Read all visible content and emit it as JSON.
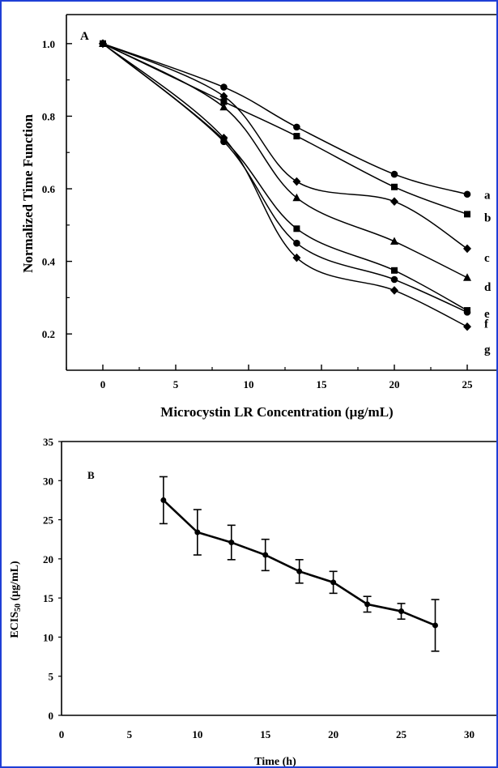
{
  "chart_data": [
    {
      "type": "scatter",
      "panel_label": "A",
      "xlabel": "Microcystin LR Concentration (μg/mL)",
      "ylabel": "Normalized Time Function",
      "xlim": [
        -2.5,
        27
      ],
      "ylim": [
        0.1,
        1.08
      ],
      "xticks": [
        0,
        5,
        10,
        15,
        20,
        25
      ],
      "yticks": [
        0.2,
        0.4,
        0.6,
        0.8,
        1.0
      ],
      "ytick_labels": [
        "0.2",
        "0.4",
        "0.6",
        "0.8",
        "1.0"
      ],
      "x": [
        0,
        8.3,
        13.3,
        20,
        25
      ],
      "series": [
        {
          "name": "a",
          "marker": "circle",
          "values": [
            1.0,
            0.88,
            0.77,
            0.64,
            0.585
          ]
        },
        {
          "name": "b",
          "marker": "square",
          "values": [
            1.0,
            0.84,
            0.745,
            0.605,
            0.53
          ]
        },
        {
          "name": "c",
          "marker": "diamond",
          "values": [
            1.0,
            0.855,
            0.62,
            0.565,
            0.435
          ]
        },
        {
          "name": "d",
          "marker": "triangle",
          "values": [
            1.0,
            0.825,
            0.575,
            0.455,
            0.355
          ]
        },
        {
          "name": "e",
          "marker": "square",
          "values": [
            1.0,
            0.735,
            0.49,
            0.375,
            0.265
          ]
        },
        {
          "name": "f",
          "marker": "circle",
          "values": [
            1.0,
            0.73,
            0.45,
            0.35,
            0.26
          ]
        },
        {
          "name": "g",
          "marker": "diamond",
          "values": [
            1.0,
            0.74,
            0.41,
            0.32,
            0.22
          ]
        }
      ]
    },
    {
      "type": "line",
      "panel_label": "B",
      "xlabel": "Time (h)",
      "ylabel_main": "ECIS",
      "ylabel_sub": "50",
      "ylabel_unit": " (μg/mL)",
      "xlim": [
        0,
        32
      ],
      "ylim": [
        0,
        35
      ],
      "xticks": [
        0,
        5,
        10,
        15,
        20,
        25,
        30
      ],
      "yticks": [
        0,
        5,
        10,
        15,
        20,
        25,
        30,
        35
      ],
      "x": [
        7.5,
        10,
        12.5,
        15,
        17.5,
        20,
        22.5,
        25,
        27.5
      ],
      "values": [
        27.5,
        23.4,
        22.1,
        20.5,
        18.4,
        17.0,
        14.2,
        13.3,
        11.5
      ],
      "errors": [
        3.0,
        2.9,
        2.2,
        2.0,
        1.5,
        1.4,
        1.0,
        1.0,
        3.3
      ]
    }
  ]
}
